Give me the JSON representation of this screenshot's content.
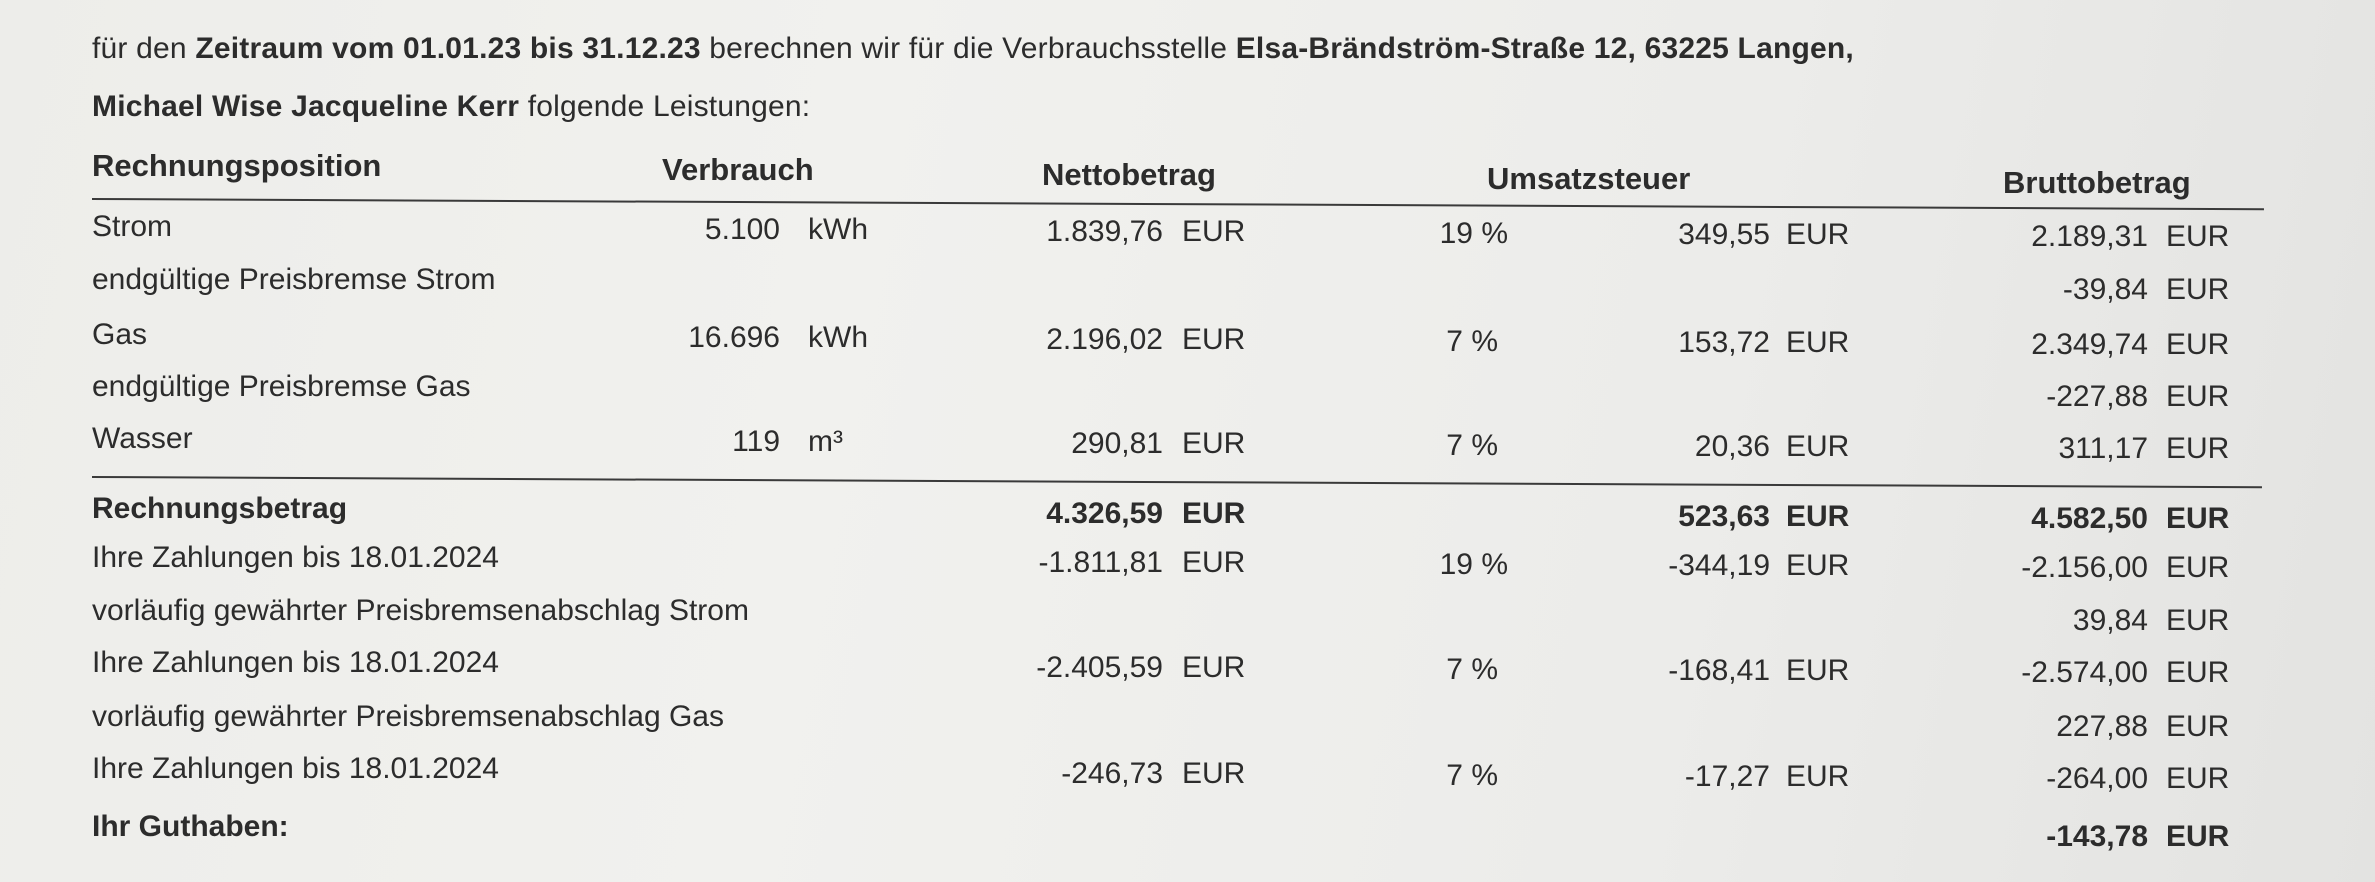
{
  "intro": {
    "l1_a": "für den ",
    "l1_b": "Zeitraum vom 01.01.23 bis 31.12.23",
    "l1_c": " berechnen wir für die Verbrauchsstelle ",
    "l1_d": "Elsa-Brändström-Straße 12, 63225 Langen,",
    "l2_a": "Michael Wise Jacqueline Kerr",
    "l2_b": " folgende Leistungen:"
  },
  "headers": {
    "position": "Rechnungsposition",
    "verbrauch": "Verbrauch",
    "netto": "Nettobetrag",
    "ust": "Umsatzsteuer",
    "brutto": "Bruttobetrag"
  },
  "rows": [
    {
      "label": "Strom",
      "qty": "5.100",
      "unit": "kWh",
      "netto": "1.839,76",
      "netto_cur": "EUR",
      "rate": "19 %",
      "ust": "349,55",
      "ust_cur": "EUR",
      "brutto": "2.189,31",
      "brutto_cur": "EUR"
    },
    {
      "label": "endgültige Preisbremse Strom",
      "brutto": "-39,84",
      "brutto_cur": "EUR"
    },
    {
      "label": "Gas",
      "qty": "16.696",
      "unit": "kWh",
      "netto": "2.196,02",
      "netto_cur": "EUR",
      "rate": "7 %",
      "ust": "153,72",
      "ust_cur": "EUR",
      "brutto": "2.349,74",
      "brutto_cur": "EUR"
    },
    {
      "label": "endgültige Preisbremse Gas",
      "brutto": "-227,88",
      "brutto_cur": "EUR"
    },
    {
      "label": "Wasser",
      "qty": "119",
      "unit": "m³",
      "netto": "290,81",
      "netto_cur": "EUR",
      "rate": "7 %",
      "ust": "20,36",
      "ust_cur": "EUR",
      "brutto": "311,17",
      "brutto_cur": "EUR"
    }
  ],
  "total": {
    "label": "Rechnungsbetrag",
    "netto": "4.326,59",
    "netto_cur": "EUR",
    "ust": "523,63",
    "ust_cur": "EUR",
    "brutto": "4.582,50",
    "brutto_cur": "EUR"
  },
  "payments": [
    {
      "label": "Ihre Zahlungen bis 18.01.2024",
      "netto": "-1.811,81",
      "netto_cur": "EUR",
      "rate": "19 %",
      "ust": "-344,19",
      "ust_cur": "EUR",
      "brutto": "-2.156,00",
      "brutto_cur": "EUR"
    },
    {
      "label": "vorläufig gewährter Preisbremsenabschlag Strom",
      "brutto": "39,84",
      "brutto_cur": "EUR"
    },
    {
      "label": "Ihre Zahlungen bis 18.01.2024",
      "netto": "-2.405,59",
      "netto_cur": "EUR",
      "rate": "7 %",
      "ust": "-168,41",
      "ust_cur": "EUR",
      "brutto": "-2.574,00",
      "brutto_cur": "EUR"
    },
    {
      "label": "vorläufig gewährter Preisbremsenabschlag Gas",
      "brutto": "227,88",
      "brutto_cur": "EUR"
    },
    {
      "label": "Ihre Zahlungen bis 18.01.2024",
      "netto": "-246,73",
      "netto_cur": "EUR",
      "rate": "7 %",
      "ust": "-17,27",
      "ust_cur": "EUR",
      "brutto": "-264,00",
      "brutto_cur": "EUR"
    }
  ],
  "credit": {
    "label": "Ihr Guthaben:",
    "brutto": "-143,78",
    "brutto_cur": "EUR"
  }
}
